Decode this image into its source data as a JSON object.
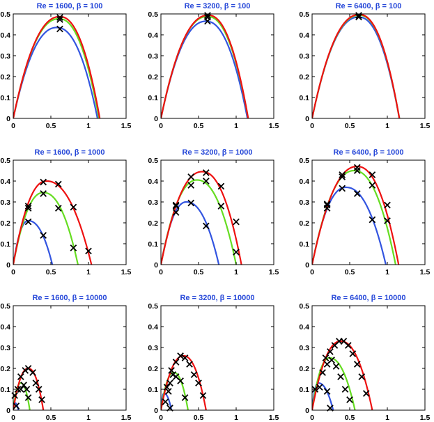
{
  "figure": {
    "colors": {
      "blue": "#3355e0",
      "green": "#66dd22",
      "red": "#ee1111",
      "marker": "#000000",
      "title": "#2446d8"
    },
    "axes": {
      "xlim": [
        0,
        1.5
      ],
      "ylim": [
        0,
        0.5
      ],
      "xticks": [
        "0",
        "0.5",
        "1",
        "1.5"
      ],
      "yticks": [
        "0",
        "0.1",
        "0.2",
        "0.3",
        "0.4",
        "0.5"
      ]
    }
  },
  "chart_data": [
    {
      "type": "line",
      "title": "Re = 1600, β = 100",
      "xlim": [
        0,
        1.5
      ],
      "ylim": [
        0,
        0.5
      ],
      "series": [
        {
          "name": "blue",
          "color": "#3355e0",
          "x_end": 1.12,
          "peak": [
            0.58,
            0.435
          ]
        },
        {
          "name": "green",
          "color": "#66dd22",
          "x_end": 1.14,
          "peak": [
            0.61,
            0.477
          ]
        },
        {
          "name": "red",
          "color": "#ee1111",
          "x_end": 1.15,
          "peak": [
            0.62,
            0.487
          ]
        }
      ],
      "markers": [
        [
          0.62,
          0.483
        ],
        [
          0.62,
          0.473
        ],
        [
          0.62,
          0.428
        ]
      ]
    },
    {
      "type": "line",
      "title": "Re = 3200, β = 100",
      "xlim": [
        0,
        1.5
      ],
      "ylim": [
        0,
        0.5
      ],
      "series": [
        {
          "name": "blue",
          "color": "#3355e0",
          "x_end": 1.15,
          "peak": [
            0.6,
            0.465
          ]
        },
        {
          "name": "green",
          "color": "#66dd22",
          "x_end": 1.16,
          "peak": [
            0.62,
            0.488
          ]
        },
        {
          "name": "red",
          "color": "#ee1111",
          "x_end": 1.16,
          "peak": [
            0.63,
            0.494
          ]
        }
      ],
      "markers": [
        [
          0.62,
          0.493
        ],
        [
          0.62,
          0.484
        ],
        [
          0.62,
          0.465
        ]
      ]
    },
    {
      "type": "line",
      "title": "Re = 6400, β = 100",
      "xlim": [
        0,
        1.5
      ],
      "ylim": [
        0,
        0.5
      ],
      "series": [
        {
          "name": "blue",
          "color": "#3355e0",
          "x_end": 1.16,
          "peak": [
            0.62,
            0.485
          ]
        },
        {
          "name": "green",
          "color": "#66dd22",
          "x_end": 1.16,
          "peak": [
            0.63,
            0.494
          ]
        },
        {
          "name": "red",
          "color": "#ee1111",
          "x_end": 1.16,
          "peak": [
            0.63,
            0.497
          ]
        }
      ],
      "markers": [
        [
          0.62,
          0.493
        ],
        [
          0.62,
          0.485
        ]
      ]
    },
    {
      "type": "line",
      "title": "Re = 1600, β = 1000",
      "xlim": [
        0,
        1.5
      ],
      "ylim": [
        0,
        0.5
      ],
      "series": [
        {
          "name": "blue",
          "color": "#3355e0",
          "x_end": 0.52,
          "peak": [
            0.2,
            0.21
          ]
        },
        {
          "name": "green",
          "color": "#66dd22",
          "x_end": 0.86,
          "peak": [
            0.4,
            0.345
          ]
        },
        {
          "name": "red",
          "color": "#ee1111",
          "x_end": 1.04,
          "peak": [
            0.44,
            0.4
          ]
        }
      ],
      "markers": [
        [
          0.2,
          0.205
        ],
        [
          0.4,
          0.14
        ],
        [
          0.2,
          0.27
        ],
        [
          0.4,
          0.34
        ],
        [
          0.6,
          0.27
        ],
        [
          0.8,
          0.08
        ],
        [
          0.2,
          0.28
        ],
        [
          0.4,
          0.395
        ],
        [
          0.6,
          0.385
        ],
        [
          0.8,
          0.275
        ],
        [
          1.0,
          0.065
        ]
      ]
    },
    {
      "type": "line",
      "title": "Re = 3200, β = 1000",
      "xlim": [
        0,
        1.5
      ],
      "ylim": [
        0,
        0.5
      ],
      "series": [
        {
          "name": "blue",
          "color": "#3355e0",
          "x_end": 0.77,
          "peak": [
            0.34,
            0.3
          ]
        },
        {
          "name": "green",
          "color": "#66dd22",
          "x_end": 1.0,
          "peak": [
            0.48,
            0.405
          ]
        },
        {
          "name": "red",
          "color": "#ee1111",
          "x_end": 1.07,
          "peak": [
            0.55,
            0.445
          ]
        }
      ],
      "markers": [
        [
          0.2,
          0.285
        ],
        [
          0.4,
          0.295
        ],
        [
          0.6,
          0.185
        ],
        [
          0.2,
          0.25
        ],
        [
          0.4,
          0.38
        ],
        [
          0.6,
          0.4
        ],
        [
          0.8,
          0.28
        ],
        [
          1.0,
          0.06
        ],
        [
          0.2,
          0.28
        ],
        [
          0.4,
          0.42
        ],
        [
          0.6,
          0.44
        ],
        [
          0.8,
          0.375
        ],
        [
          1.0,
          0.205
        ]
      ]
    },
    {
      "type": "line",
      "title": "Re = 6400, β = 1000",
      "xlim": [
        0,
        1.5
      ],
      "ylim": [
        0,
        0.5
      ],
      "series": [
        {
          "name": "blue",
          "color": "#3355e0",
          "x_end": 0.98,
          "peak": [
            0.45,
            0.37
          ]
        },
        {
          "name": "green",
          "color": "#66dd22",
          "x_end": 1.11,
          "peak": [
            0.56,
            0.45
          ]
        },
        {
          "name": "red",
          "color": "#ee1111",
          "x_end": 1.15,
          "peak": [
            0.6,
            0.47
          ]
        }
      ],
      "markers": [
        [
          0.2,
          0.285
        ],
        [
          0.4,
          0.365
        ],
        [
          0.6,
          0.34
        ],
        [
          0.8,
          0.215
        ],
        [
          0.2,
          0.27
        ],
        [
          0.4,
          0.42
        ],
        [
          0.6,
          0.45
        ],
        [
          0.8,
          0.38
        ],
        [
          1.0,
          0.21
        ],
        [
          0.2,
          0.29
        ],
        [
          0.4,
          0.43
        ],
        [
          0.6,
          0.465
        ],
        [
          0.8,
          0.43
        ],
        [
          1.0,
          0.285
        ]
      ]
    },
    {
      "type": "line",
      "title": "Re = 1600, β = 10000",
      "xlim": [
        0,
        1.5
      ],
      "ylim": [
        0,
        0.5
      ],
      "series": [
        {
          "name": "blue",
          "color": "#3355e0",
          "x_end": 0.07,
          "peak": [
            0.02,
            0.035
          ]
        },
        {
          "name": "green",
          "color": "#66dd22",
          "x_end": 0.22,
          "peak": [
            0.1,
            0.13
          ]
        },
        {
          "name": "red",
          "color": "#ee1111",
          "x_end": 0.4,
          "peak": [
            0.2,
            0.2
          ]
        }
      ],
      "markers": [
        [
          0.04,
          0.02
        ],
        [
          0.02,
          0.07
        ],
        [
          0.06,
          0.1
        ],
        [
          0.1,
          0.1
        ],
        [
          0.14,
          0.12
        ],
        [
          0.18,
          0.1
        ],
        [
          0.2,
          0.06
        ],
        [
          0.1,
          0.16
        ],
        [
          0.16,
          0.19
        ],
        [
          0.2,
          0.2
        ],
        [
          0.26,
          0.18
        ],
        [
          0.3,
          0.13
        ],
        [
          0.34,
          0.1
        ],
        [
          0.38,
          0.05
        ]
      ]
    },
    {
      "type": "line",
      "title": "Re = 3200, β = 10000",
      "xlim": [
        0,
        1.5
      ],
      "ylim": [
        0,
        0.5
      ],
      "series": [
        {
          "name": "blue",
          "color": "#3355e0",
          "x_end": 0.14,
          "peak": [
            0.04,
            0.08
          ]
        },
        {
          "name": "green",
          "color": "#66dd22",
          "x_end": 0.36,
          "peak": [
            0.17,
            0.18
          ]
        },
        {
          "name": "red",
          "color": "#ee1111",
          "x_end": 0.6,
          "peak": [
            0.3,
            0.26
          ]
        }
      ],
      "markers": [
        [
          0.06,
          0.04
        ],
        [
          0.12,
          0.01
        ],
        [
          0.08,
          0.11
        ],
        [
          0.12,
          0.13
        ],
        [
          0.16,
          0.17
        ],
        [
          0.2,
          0.16
        ],
        [
          0.26,
          0.14
        ],
        [
          0.32,
          0.06
        ],
        [
          0.1,
          0.09
        ],
        [
          0.14,
          0.19
        ],
        [
          0.2,
          0.23
        ],
        [
          0.26,
          0.26
        ],
        [
          0.32,
          0.25
        ],
        [
          0.38,
          0.22
        ],
        [
          0.44,
          0.17
        ],
        [
          0.5,
          0.13
        ],
        [
          0.56,
          0.07
        ]
      ]
    },
    {
      "type": "line",
      "title": "Re = 6400, β = 10000",
      "xlim": [
        0,
        1.5
      ],
      "ylim": [
        0,
        0.5
      ],
      "series": [
        {
          "name": "blue",
          "color": "#3355e0",
          "x_end": 0.28,
          "peak": [
            0.08,
            0.13
          ]
        },
        {
          "name": "green",
          "color": "#66dd22",
          "x_end": 0.57,
          "peak": [
            0.23,
            0.25
          ]
        },
        {
          "name": "red",
          "color": "#ee1111",
          "x_end": 0.8,
          "peak": [
            0.38,
            0.33
          ]
        }
      ],
      "markers": [
        [
          0.04,
          0.1
        ],
        [
          0.1,
          0.11
        ],
        [
          0.2,
          0.09
        ],
        [
          0.24,
          0.01
        ],
        [
          0.14,
          0.18
        ],
        [
          0.2,
          0.22
        ],
        [
          0.26,
          0.24
        ],
        [
          0.32,
          0.21
        ],
        [
          0.38,
          0.16
        ],
        [
          0.44,
          0.1
        ],
        [
          0.5,
          0.05
        ],
        [
          0.18,
          0.25
        ],
        [
          0.24,
          0.28
        ],
        [
          0.3,
          0.31
        ],
        [
          0.36,
          0.33
        ],
        [
          0.42,
          0.33
        ],
        [
          0.48,
          0.31
        ],
        [
          0.54,
          0.27
        ],
        [
          0.6,
          0.22
        ],
        [
          0.66,
          0.16
        ],
        [
          0.72,
          0.08
        ]
      ]
    }
  ]
}
